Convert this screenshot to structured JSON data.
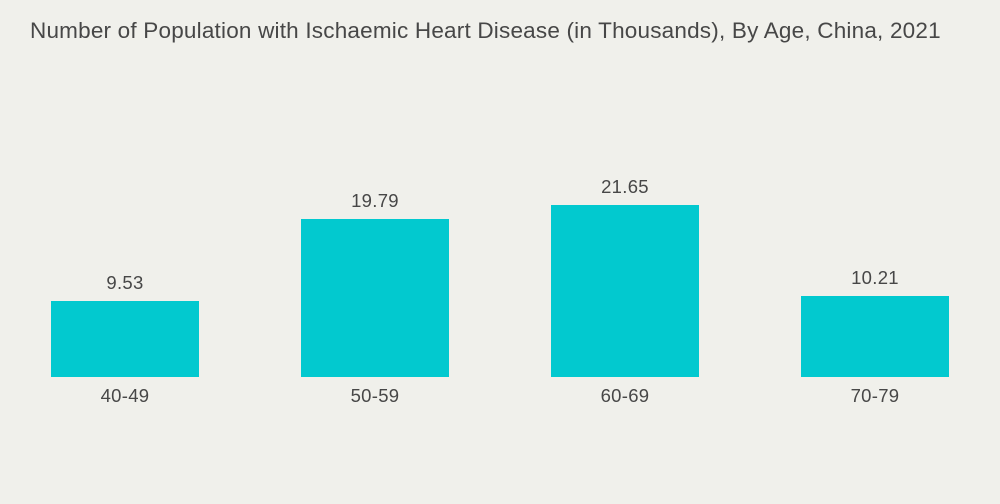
{
  "chart_data": {
    "type": "bar",
    "title": "Number of Population with Ischaemic Heart Disease (in Thousands), By Age, China, 2021",
    "categories": [
      "40-49",
      "50-59",
      "60-69",
      "70-79"
    ],
    "values": [
      9.53,
      19.79,
      21.65,
      10.21
    ],
    "value_labels": [
      "9.53",
      "19.79",
      "21.65",
      "10.21"
    ],
    "xlabel": "",
    "ylabel": "",
    "ylim": [
      0,
      26
    ],
    "grid": false,
    "axes_visible": false,
    "legend": "none",
    "value_label_position": "above-bars",
    "bar_color": "#02C9CF",
    "text_color": "#474747",
    "background_color": "#F0F0EB"
  }
}
